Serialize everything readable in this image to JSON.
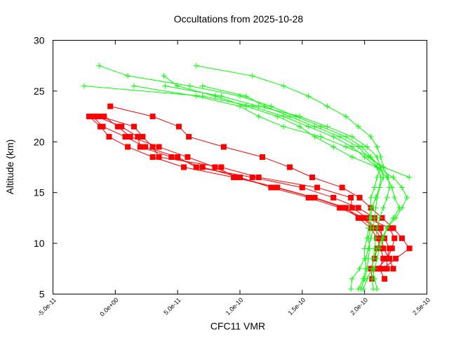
{
  "chart_data": {
    "type": "line",
    "title": "Occultations from 2025-10-28",
    "xlabel": "CFC11 VMR",
    "ylabel": "Altitude (km)",
    "xlim": [
      -5e-11,
      2.5e-10
    ],
    "ylim": [
      5,
      30
    ],
    "x_ticks": [
      -5e-11,
      0,
      5e-11,
      1e-10,
      1.5e-10,
      2e-10,
      2.5e-10
    ],
    "x_tick_labels": [
      "-5.0e-11",
      "0.0e+00",
      "5.0e-11",
      "1.0e-10",
      "1.5e-10",
      "2.0e-10",
      "2.5e-10"
    ],
    "y_ticks": [
      5,
      10,
      15,
      20,
      25,
      30
    ],
    "y_tick_labels": [
      "5",
      "10",
      "15",
      "20",
      "25",
      "30"
    ],
    "grid": false,
    "legend": "none",
    "series": [
      {
        "color": "#ff0000",
        "marker": "square",
        "altitude": [
          22.5,
          21.5,
          20.5,
          19.5,
          18.5,
          17.5,
          16.5,
          15.5,
          14.5,
          13.5,
          12.5,
          11.5,
          10.5,
          9.5,
          8.5,
          7.5,
          6.5
        ],
        "vmr": [
          -2.1e-11,
          -1.2e-11,
          -5e-12,
          1e-11,
          3e-11,
          5.5e-11,
          9.5e-11,
          1.3e-10,
          1.6e-10,
          1.85e-10,
          1.95e-10,
          2.05e-10,
          2.1e-10,
          2.13e-10,
          2.15e-10,
          2.12e-10,
          2.16e-10
        ]
      },
      {
        "color": "#ff0000",
        "marker": "square",
        "altitude": [
          23.5,
          22.5,
          21.5,
          20.5,
          19.5,
          18.5,
          17.5,
          16.5,
          15.5,
          14.5,
          13.5,
          12.5,
          11.5,
          10.5,
          9.5,
          8.5,
          7.5
        ],
        "vmr": [
          -4e-12,
          3e-11,
          5.1e-11,
          5.9e-11,
          8.7e-11,
          1.18e-10,
          1.4e-10,
          1.58e-10,
          1.82e-10,
          1.96e-10,
          2.05e-10,
          2.14e-10,
          2.23e-10,
          2.3e-10,
          2.36e-10,
          2.25e-10,
          2.15e-10
        ]
      },
      {
        "color": "#ff0000",
        "marker": "square",
        "altitude": [
          22.5,
          21.5,
          20.5,
          19.5,
          18.5,
          17.5,
          16.5,
          15.5,
          14.5,
          13.5,
          12.5,
          11.5,
          10.5,
          9.5,
          8.5,
          7.5,
          6.5
        ],
        "vmr": [
          -1.5e-11,
          5e-12,
          1.8e-11,
          2e-11,
          4.5e-11,
          7e-11,
          1e-10,
          1.25e-10,
          1.55e-10,
          1.8e-10,
          1.98e-10,
          2.08e-10,
          2.13e-10,
          2.1e-10,
          2.08e-10,
          2.05e-10,
          2.06e-10
        ]
      },
      {
        "color": "#ff0000",
        "marker": "square",
        "altitude": [
          22.5,
          21.5,
          20.5,
          19.5,
          18.5,
          17.5,
          16.5,
          15.5,
          14.5,
          13.5,
          12.5,
          11.5,
          10.5,
          9.5,
          8.5,
          7.5
        ],
        "vmr": [
          -9e-12,
          2e-12,
          1.2e-11,
          3.5e-11,
          5.8e-11,
          8e-11,
          9.8e-11,
          1.29e-10,
          1.59e-10,
          1.83e-10,
          1.99e-10,
          2.1e-10,
          2.16e-10,
          2.2e-10,
          2.18e-10,
          2.1e-10
        ]
      },
      {
        "color": "#ff0000",
        "marker": "square",
        "altitude": [
          22.5,
          21.5,
          20.5,
          19.5,
          18.5,
          17.5,
          16.5,
          15.5,
          14.5,
          13.5,
          12.5,
          11.5,
          10.5,
          9.5,
          8.5,
          7.5
        ],
        "vmr": [
          -1.8e-11,
          -1e-11,
          8e-12,
          2.4e-11,
          5e-11,
          6.5e-11,
          1.1e-10,
          1.5e-10,
          1.75e-10,
          1.95e-10,
          2.08e-10,
          2.13e-10,
          2.14e-10,
          2.15e-10,
          2.2e-10,
          2.23e-10
        ]
      },
      {
        "color": "#ff0000",
        "marker": "square",
        "altitude": [
          22.5,
          21.5,
          20.5,
          19.5,
          18.5,
          17.5,
          16.5,
          15.5,
          14.5,
          13.5,
          12.5,
          11.5,
          10.5,
          9.5,
          8.5,
          7.5
        ],
        "vmr": [
          -1.2e-11,
          1.5e-11,
          2.2e-11,
          3e-11,
          3.5e-11,
          8.5e-11,
          1.15e-10,
          1.62e-10,
          1.89e-10,
          1.9e-10,
          2.02e-10,
          2.2e-10,
          2.24e-10,
          2.22e-10,
          2.18e-10,
          2.18e-10
        ]
      },
      {
        "color": "#00ff00",
        "marker": "plus",
        "altitude": [
          27.5,
          26.5,
          25.5,
          24.5,
          23.5,
          22.5,
          21.5,
          20.5,
          19.5,
          18.5,
          17.5,
          16.5,
          15.5,
          14.5,
          13.5,
          12.5,
          11.5,
          10.5,
          9.5,
          8.5,
          7.5,
          6.5,
          5.5
        ],
        "vmr": [
          -1.3e-11,
          1e-11,
          6e-11,
          1e-10,
          1.25e-10,
          1.45e-10,
          1.65e-10,
          1.85e-10,
          1.98e-10,
          2.05e-10,
          2.1e-10,
          2.13e-10,
          2.12e-10,
          2.09e-10,
          2.06e-10,
          2.05e-10,
          2.05e-10,
          2.03e-10,
          2.04e-10,
          2.03e-10,
          2.02e-10,
          2e-10,
          1.97e-10
        ]
      },
      {
        "color": "#00ff00",
        "marker": "plus",
        "altitude": [
          27.5,
          26.5,
          25.5,
          24.5,
          23.5,
          22.5,
          21.5,
          20.5,
          19.5,
          18.5,
          17.5,
          16.5,
          15.5,
          14.5,
          13.5,
          12.5,
          11.5,
          10.5,
          9.5,
          8.5,
          7.5,
          6.5,
          5.5
        ],
        "vmr": [
          6.5e-11,
          1.1e-10,
          1.35e-10,
          1.55e-10,
          1.7e-10,
          1.85e-10,
          1.95e-10,
          2.05e-10,
          2.1e-10,
          2.13e-10,
          2.15e-10,
          2.19e-10,
          2.2e-10,
          2.18e-10,
          2.15e-10,
          2.12e-10,
          2.1e-10,
          2.09e-10,
          2.08e-10,
          2.07e-10,
          2.06e-10,
          2.08e-10,
          2.1e-10
        ]
      },
      {
        "color": "#00ff00",
        "marker": "plus",
        "altitude": [
          25.5,
          24.5,
          23.5,
          22.5,
          21.5,
          20.5,
          19.5,
          18.5,
          17.5,
          16.5,
          15.5,
          14.5,
          13.5,
          12.5,
          11.5,
          10.5,
          9.5,
          8.5,
          7.5,
          6.5,
          5.5
        ],
        "vmr": [
          -2.5e-11,
          7e-11,
          1.1e-10,
          1.35e-10,
          1.55e-10,
          1.75e-10,
          1.9e-10,
          2e-10,
          2.1e-10,
          2.18e-10,
          2.22e-10,
          2.24e-10,
          2.28e-10,
          2.23e-10,
          2.18e-10,
          2.15e-10,
          2.12e-10,
          2.1e-10,
          2.08e-10,
          2.06e-10,
          2.07e-10
        ]
      },
      {
        "color": "#00ff00",
        "marker": "plus",
        "altitude": [
          26.5,
          25.5,
          24.5,
          23.5,
          22.5,
          21.5,
          20.5,
          19.5,
          18.5,
          17.5,
          16.5,
          15.5,
          14.5,
          13.5,
          12.5,
          11.5,
          10.5,
          9.5,
          8.5,
          7.5,
          6.5,
          5.5
        ],
        "vmr": [
          3.9e-11,
          5e-11,
          8e-11,
          1.05e-10,
          1.3e-10,
          1.48e-10,
          1.6e-10,
          1.75e-10,
          1.9e-10,
          2.1e-10,
          2.23e-10,
          2.3e-10,
          2.34e-10,
          2.3e-10,
          2.25e-10,
          2.18e-10,
          2.14e-10,
          2.1e-10,
          2.07e-10,
          2.06e-10,
          2.02e-10,
          1.99e-10
        ]
      },
      {
        "color": "#00ff00",
        "marker": "plus",
        "altitude": [
          25.5,
          24.5,
          23.5,
          22.5,
          21.5,
          20.5,
          19.5,
          18.5,
          17.5,
          16.5,
          15.5,
          14.5,
          13.5,
          12.5,
          11.5,
          10.5,
          9.5,
          8.5,
          7.5,
          6.5,
          5.5
        ],
        "vmr": [
          1.5e-11,
          6.5e-11,
          1e-10,
          1.15e-10,
          1.35e-10,
          1.65e-10,
          1.85e-10,
          2.05e-10,
          2.13e-10,
          2.15e-10,
          2.12e-10,
          2.1e-10,
          2.09e-10,
          2.08e-10,
          2.07e-10,
          2.05e-10,
          2.03e-10,
          2.01e-10,
          2.01e-10,
          1.99e-10,
          1.95e-10
        ]
      },
      {
        "color": "#00ff00",
        "marker": "plus",
        "altitude": [
          25.5,
          24.5,
          23.5,
          22.5,
          21.5,
          20.5,
          19.5,
          18.5,
          17.5,
          16.5
        ],
        "vmr": [
          7e-11,
          1.05e-10,
          1.2e-10,
          1.4e-10,
          1.6e-10,
          1.8e-10,
          1.95e-10,
          2.03e-10,
          2.15e-10,
          2.36e-10
        ]
      },
      {
        "color": "#00ff00",
        "marker": "plus",
        "altitude": [
          25.5,
          24.5,
          23.5,
          22.5,
          21.5,
          20.5,
          19.5,
          18.5,
          17.5,
          16.5,
          15.5,
          14.5,
          13.5,
          12.5,
          11.5,
          10.5,
          9.5,
          8.5,
          7.5,
          6.5,
          5.5
        ],
        "vmr": [
          4e-11,
          8.5e-11,
          1.15e-10,
          1.48e-10,
          1.7e-10,
          1.9e-10,
          2.02e-10,
          2.1e-10,
          2.13e-10,
          2.1e-10,
          2.08e-10,
          2.05e-10,
          2.05e-10,
          2.04e-10,
          2.03e-10,
          2.02e-10,
          2e-10,
          2e-10,
          1.96e-10,
          1.9e-10,
          1.89e-10
        ]
      }
    ]
  }
}
